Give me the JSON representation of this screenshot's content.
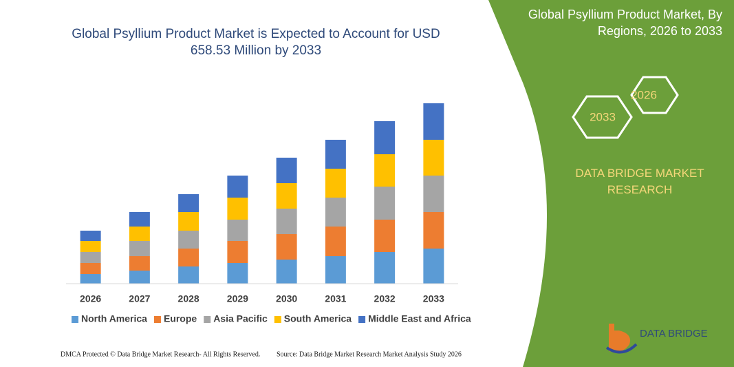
{
  "chart_data": {
    "type": "stacked-bar",
    "title": "Global Psyllium Product Market is Expected to Account for USD 658.53 Million by 2033",
    "categories": [
      "2026",
      "2027",
      "2028",
      "2029",
      "2030",
      "2031",
      "2032",
      "2033"
    ],
    "series": [
      {
        "name": "North America",
        "color": "#5b9bd5",
        "values": [
          14,
          19,
          25,
          30,
          35,
          40,
          46,
          51
        ]
      },
      {
        "name": "Europe",
        "color": "#ed7d31",
        "values": [
          16,
          21,
          26,
          32,
          37,
          43,
          47,
          53
        ]
      },
      {
        "name": "Asia Pacific",
        "color": "#a5a5a5",
        "values": [
          16,
          22,
          26,
          31,
          37,
          42,
          48,
          53
        ]
      },
      {
        "name": "South America",
        "color": "#ffc000",
        "values": [
          16,
          21,
          27,
          32,
          37,
          42,
          47,
          52
        ]
      },
      {
        "name": "Middle East and Africa",
        "color": "#4472c4",
        "values": [
          15,
          21,
          26,
          32,
          37,
          42,
          48,
          53
        ]
      }
    ]
  },
  "panel": {
    "title": "Global Psyllium Product Market, By Regions, 2026 to 2033",
    "hex_small": "2026",
    "hex_large": "2033",
    "brand": "DATA BRIDGE MARKET RESEARCH",
    "logo": "DATA BRIDGE"
  },
  "footer": {
    "left": "DMCA Protected © Data Bridge Market Research- All Rights Reserved.",
    "right": "Source: Data Bridge Market Research Market Analysis Study 2026"
  }
}
